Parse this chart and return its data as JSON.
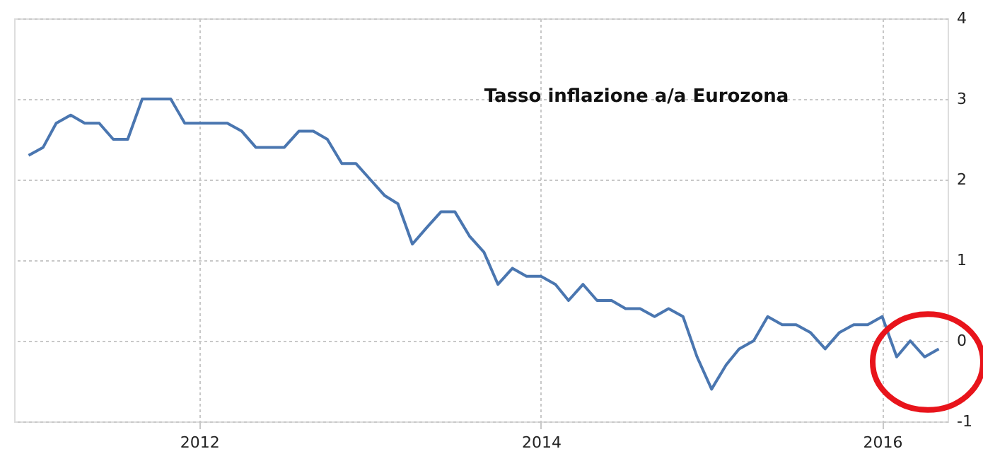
{
  "chart_data": {
    "type": "line",
    "title": "Tasso inflazione a/a Eurozona",
    "x": [
      "2011-01",
      "2011-02",
      "2011-03",
      "2011-04",
      "2011-05",
      "2011-06",
      "2011-07",
      "2011-08",
      "2011-09",
      "2011-10",
      "2011-11",
      "2011-12",
      "2012-01",
      "2012-02",
      "2012-03",
      "2012-04",
      "2012-05",
      "2012-06",
      "2012-07",
      "2012-08",
      "2012-09",
      "2012-10",
      "2012-11",
      "2012-12",
      "2013-01",
      "2013-02",
      "2013-03",
      "2013-04",
      "2013-05",
      "2013-06",
      "2013-07",
      "2013-08",
      "2013-09",
      "2013-10",
      "2013-11",
      "2013-12",
      "2014-01",
      "2014-02",
      "2014-03",
      "2014-04",
      "2014-05",
      "2014-06",
      "2014-07",
      "2014-08",
      "2014-09",
      "2014-10",
      "2014-11",
      "2014-12",
      "2015-01",
      "2015-02",
      "2015-03",
      "2015-04",
      "2015-05",
      "2015-06",
      "2015-07",
      "2015-08",
      "2015-09",
      "2015-10",
      "2015-11",
      "2015-12",
      "2016-01",
      "2016-02",
      "2016-03",
      "2016-04",
      "2016-05"
    ],
    "series": [
      {
        "color": "#4a76b0",
        "values": [
          2.3,
          2.4,
          2.7,
          2.8,
          2.7,
          2.7,
          2.5,
          2.5,
          3.0,
          3.0,
          3.0,
          2.7,
          2.7,
          2.7,
          2.7,
          2.6,
          2.4,
          2.4,
          2.4,
          2.6,
          2.6,
          2.5,
          2.2,
          2.2,
          2.0,
          1.8,
          1.7,
          1.2,
          1.4,
          1.6,
          1.6,
          1.3,
          1.1,
          0.7,
          0.9,
          0.8,
          0.8,
          0.7,
          0.5,
          0.7,
          0.5,
          0.5,
          0.4,
          0.4,
          0.3,
          0.4,
          0.3,
          -0.2,
          -0.6,
          -0.3,
          -0.1,
          0.0,
          0.3,
          0.2,
          0.2,
          0.1,
          -0.1,
          0.1,
          0.2,
          0.2,
          0.3,
          -0.2,
          0.0,
          -0.2,
          -0.1
        ]
      }
    ],
    "xlim": [
      "2010-12-01",
      "2016-05-20"
    ],
    "xticks": [
      "2012",
      "2014",
      "2016"
    ],
    "ylim": [
      -1,
      4
    ],
    "yticks": [
      -1,
      0,
      1,
      2,
      3,
      4
    ],
    "grid": true,
    "legend": false,
    "marker": "none",
    "line_style": "solid"
  }
}
